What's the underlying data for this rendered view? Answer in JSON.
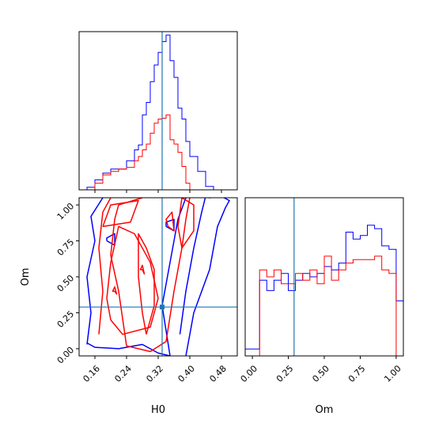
{
  "chart_data": {
    "type": "corner",
    "parameters": [
      "H0",
      "Om"
    ],
    "truth": {
      "H0": 0.33,
      "Om": 0.29
    },
    "colors": {
      "blue": "#0000ff",
      "red": "#ff0000",
      "truth": "#1f77b4"
    },
    "series": [
      {
        "color": "blue"
      },
      {
        "color": "red"
      }
    ],
    "panels": [
      {
        "id": "hist-H0",
        "type": "histogram",
        "xlim": [
          0.12,
          0.52
        ],
        "ylim": [
          0,
          190
        ],
        "bin_edges": [
          0.12,
          0.14,
          0.16,
          0.18,
          0.2,
          0.22,
          0.24,
          0.26,
          0.27,
          0.28,
          0.29,
          0.3,
          0.31,
          0.32,
          0.33,
          0.34,
          0.35,
          0.36,
          0.37,
          0.38,
          0.39,
          0.4,
          0.42,
          0.44,
          0.46,
          0.48,
          0.5,
          0.52
        ],
        "series": [
          {
            "color": "blue",
            "counts": [
              0,
              3,
              12,
              20,
              25,
              25,
              35,
              48,
              54,
              90,
              105,
              130,
              150,
              165,
              178,
              186,
              155,
              135,
              98,
              85,
              58,
              40,
              22,
              4,
              0,
              0,
              0
            ]
          },
          {
            "color": "red",
            "counts": [
              0,
              0,
              8,
              18,
              22,
              25,
              27,
              35,
              40,
              48,
              55,
              68,
              80,
              85,
              86,
              90,
              60,
              55,
              45,
              28,
              8,
              0,
              0,
              0,
              0,
              0,
              0
            ]
          }
        ]
      },
      {
        "id": "contour-H0-Om",
        "type": "contour",
        "xlim": [
          0.12,
          0.52
        ],
        "ylim": [
          -0.05,
          1.05
        ],
        "xticks": [
          "0.16",
          "0.24",
          "0.32",
          "0.40",
          "0.48"
        ],
        "yticks": [
          "0.00",
          "0.25",
          "0.50",
          "0.75",
          "1.00"
        ],
        "xlabel": "H0",
        "ylabel": "Om",
        "series": [
          {
            "color": "blue",
            "paths": [
              [
                [
                  0.14,
                  0.04
                ],
                [
                  0.16,
                  0.01
                ],
                [
                  0.22,
                  0.0
                ],
                [
                  0.28,
                  0.03
                ],
                [
                  0.32,
                  -0.03
                ],
                [
                  0.35,
                  -0.05
                ]
              ],
              [
                [
                  0.39,
                  -0.05
                ],
                [
                  0.41,
                  0.25
                ],
                [
                  0.45,
                  0.55
                ],
                [
                  0.47,
                  0.85
                ],
                [
                  0.49,
                  0.98
                ],
                [
                  0.5,
                  1.03
                ],
                [
                  0.48,
                  1.06
                ],
                [
                  0.45,
                  1.05
                ],
                [
                  0.42,
                  1.06
                ]
              ],
              [
                [
                  0.14,
                  0.03
                ],
                [
                  0.15,
                  0.25
                ],
                [
                  0.14,
                  0.5
                ],
                [
                  0.16,
                  0.75
                ],
                [
                  0.15,
                  0.92
                ],
                [
                  0.18,
                  1.05
                ]
              ],
              [
                [
                  0.375,
                  0.1
                ],
                [
                  0.39,
                  0.4
                ],
                [
                  0.41,
                  0.7
                ],
                [
                  0.43,
                  0.95
                ],
                [
                  0.44,
                  1.06
                ]
              ],
              [
                [
                  0.35,
                  -0.05
                ],
                [
                  0.33,
                  0.3
                ],
                [
                  0.35,
                  0.6
                ],
                [
                  0.37,
                  0.9
                ],
                [
                  0.39,
                  1.05
                ]
              ],
              [
                [
                  0.19,
                  0.75
                ],
                [
                  0.21,
                  0.72
                ],
                [
                  0.21,
                  0.8
                ],
                [
                  0.19,
                  0.77
                ],
                [
                  0.19,
                  0.75
                ]
              ],
              [
                [
                  0.34,
                  0.85
                ],
                [
                  0.36,
                  0.82
                ],
                [
                  0.36,
                  0.9
                ],
                [
                  0.34,
                  0.88
                ],
                [
                  0.34,
                  0.85
                ]
              ]
            ]
          },
          {
            "color": "red",
            "paths": [
              [
                [
                  0.24,
                  0.02
                ],
                [
                  0.22,
                  0.4
                ],
                [
                  0.2,
                  0.65
                ],
                [
                  0.21,
                  0.9
                ],
                [
                  0.22,
                  1.0
                ],
                [
                  0.28,
                  1.05
                ]
              ],
              [
                [
                  0.24,
                  0.02
                ],
                [
                  0.3,
                  -0.02
                ],
                [
                  0.34,
                  0.05
                ],
                [
                  0.36,
                  0.4
                ],
                [
                  0.38,
                  0.7
                ],
                [
                  0.39,
                  0.9
                ],
                [
                  0.4,
                  1.05
                ]
              ],
              [
                [
                  0.2,
                  0.2
                ],
                [
                  0.23,
                  0.1
                ],
                [
                  0.3,
                  0.15
                ],
                [
                  0.32,
                  0.35
                ],
                [
                  0.3,
                  0.6
                ],
                [
                  0.26,
                  0.8
                ],
                [
                  0.22,
                  0.85
                ],
                [
                  0.2,
                  0.6
                ],
                [
                  0.19,
                  0.35
                ],
                [
                  0.2,
                  0.2
                ]
              ],
              [
                [
                  0.29,
                  0.1
                ],
                [
                  0.31,
                  0.3
                ],
                [
                  0.31,
                  0.55
                ],
                [
                  0.29,
                  0.7
                ],
                [
                  0.27,
                  0.8
                ],
                [
                  0.27,
                  0.5
                ],
                [
                  0.28,
                  0.25
                ],
                [
                  0.29,
                  0.1
                ]
              ],
              [
                [
                  0.18,
                  0.85
                ],
                [
                  0.25,
                  0.88
                ],
                [
                  0.27,
                  1.03
                ],
                [
                  0.2,
                  1.0
                ],
                [
                  0.18,
                  0.85
                ]
              ],
              [
                [
                  0.17,
                  0.1
                ],
                [
                  0.18,
                  0.4
                ],
                [
                  0.17,
                  0.7
                ],
                [
                  0.18,
                  0.95
                ],
                [
                  0.2,
                  1.05
                ]
              ],
              [
                [
                  0.38,
                  0.7
                ],
                [
                  0.41,
                  0.82
                ],
                [
                  0.41,
                  1.0
                ],
                [
                  0.38,
                  1.05
                ],
                [
                  0.37,
                  0.85
                ],
                [
                  0.38,
                  0.7
                ]
              ],
              [
                [
                  0.345,
                  0.85
                ],
                [
                  0.36,
                  0.82
                ],
                [
                  0.355,
                  0.95
                ],
                [
                  0.34,
                  0.9
                ],
                [
                  0.345,
                  0.85
                ]
              ],
              [
                [
                  0.28,
                  0.55
                ],
                [
                  0.285,
                  0.52
                ],
                [
                  0.28,
                  0.58
                ],
                [
                  0.275,
                  0.55
                ],
                [
                  0.28,
                  0.55
                ]
              ],
              [
                [
                  0.21,
                  0.4
                ],
                [
                  0.215,
                  0.38
                ],
                [
                  0.21,
                  0.43
                ],
                [
                  0.205,
                  0.4
                ],
                [
                  0.21,
                  0.4
                ]
              ]
            ]
          }
        ]
      },
      {
        "id": "hist-Om",
        "type": "histogram",
        "xlim": [
          -0.05,
          1.05
        ],
        "ylim": [
          0,
          230
        ],
        "xticks": [
          "0.00",
          "0.25",
          "0.50",
          "0.75",
          "1.00"
        ],
        "xlabel": "Om",
        "bin_edges": [
          -0.05,
          0.0,
          0.05,
          0.1,
          0.15,
          0.2,
          0.25,
          0.3,
          0.35,
          0.4,
          0.45,
          0.5,
          0.55,
          0.6,
          0.65,
          0.7,
          0.75,
          0.8,
          0.85,
          0.9,
          0.95,
          1.0,
          1.05
        ],
        "series": [
          {
            "color": "blue",
            "counts": [
              10,
              10,
              110,
              95,
              110,
              120,
              95,
              110,
              120,
              115,
              120,
              130,
              125,
              135,
              180,
              170,
              175,
              190,
              185,
              160,
              155,
              80
            ]
          },
          {
            "color": "red",
            "counts": [
              0,
              0,
              125,
              115,
              125,
              105,
              105,
              120,
              110,
              125,
              105,
              145,
              110,
              125,
              135,
              140,
              140,
              140,
              145,
              125,
              120,
              0
            ]
          }
        ]
      }
    ]
  }
}
